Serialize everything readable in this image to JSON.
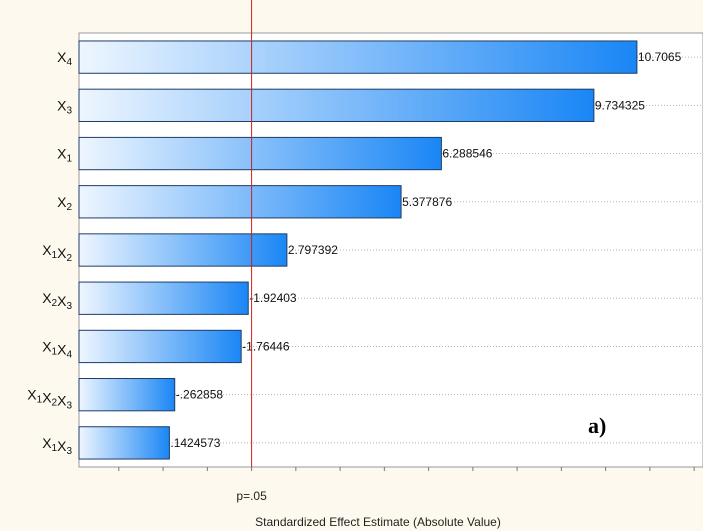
{
  "chart_data": {
    "type": "bar",
    "orientation": "horizontal",
    "categories": [
      {
        "base": "X",
        "subs": [
          "4"
        ]
      },
      {
        "base": "X",
        "subs": [
          "3"
        ]
      },
      {
        "base": "X",
        "subs": [
          "1"
        ]
      },
      {
        "base": "X",
        "subs": [
          "2"
        ]
      },
      {
        "base": "X",
        "subs": [
          "1",
          "2"
        ]
      },
      {
        "base": "X",
        "subs": [
          "2",
          "3"
        ]
      },
      {
        "base": "X",
        "subs": [
          "1",
          "4"
        ]
      },
      {
        "base": "X",
        "subs": [
          "1",
          "2",
          "3"
        ]
      },
      {
        "base": "X",
        "subs": [
          "1",
          "3"
        ]
      }
    ],
    "values": [
      10.7065,
      9.734325,
      6.288546,
      5.377876,
      2.797392,
      1.92403,
      1.76446,
      0.262858,
      0.1424573
    ],
    "value_labels": [
      "10.7065",
      "9.734325",
      "6.288546",
      "5.377876",
      "2.797392",
      "-1.92403",
      "-1.76446",
      "-.262858",
      ".1424573"
    ],
    "xlabel": "Standardized Effect Estimate (Absolute Value)",
    "xlim": [
      -1.9,
      12.2
    ],
    "reference_line": {
      "value": 2.0,
      "label": "p=.05",
      "color": "#cc2020"
    },
    "panel_label": "a)",
    "grid": "horizontal-dashed",
    "bar_gradient": [
      "#eef6ff",
      "#1a86f5"
    ]
  }
}
